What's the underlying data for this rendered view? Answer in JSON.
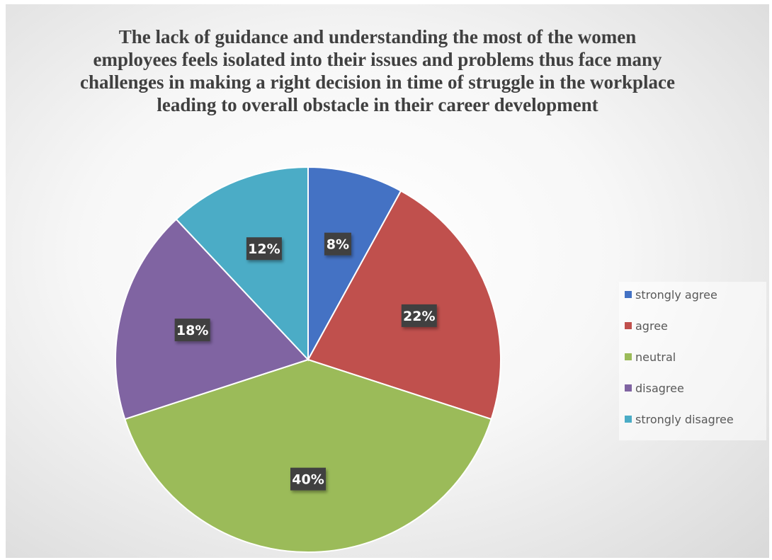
{
  "chart_data": {
    "type": "pie",
    "title": "The lack of guidance and understanding the most of the women employees feels isolated into their issues and problems thus face many challenges in making a right decision in time of struggle in the workplace leading to overall obstacle in their career development",
    "categories": [
      "strongly agree",
      "agree",
      "neutral",
      "disagree",
      "strongly disagree"
    ],
    "values": [
      8,
      22,
      40,
      18,
      12
    ],
    "labels": [
      "8%",
      "22%",
      "40%",
      "18%",
      "12%"
    ],
    "colors": [
      "#4472C4",
      "#C0504D",
      "#9BBB59",
      "#8064A2",
      "#4BACC6"
    ],
    "legend_position": "right"
  }
}
